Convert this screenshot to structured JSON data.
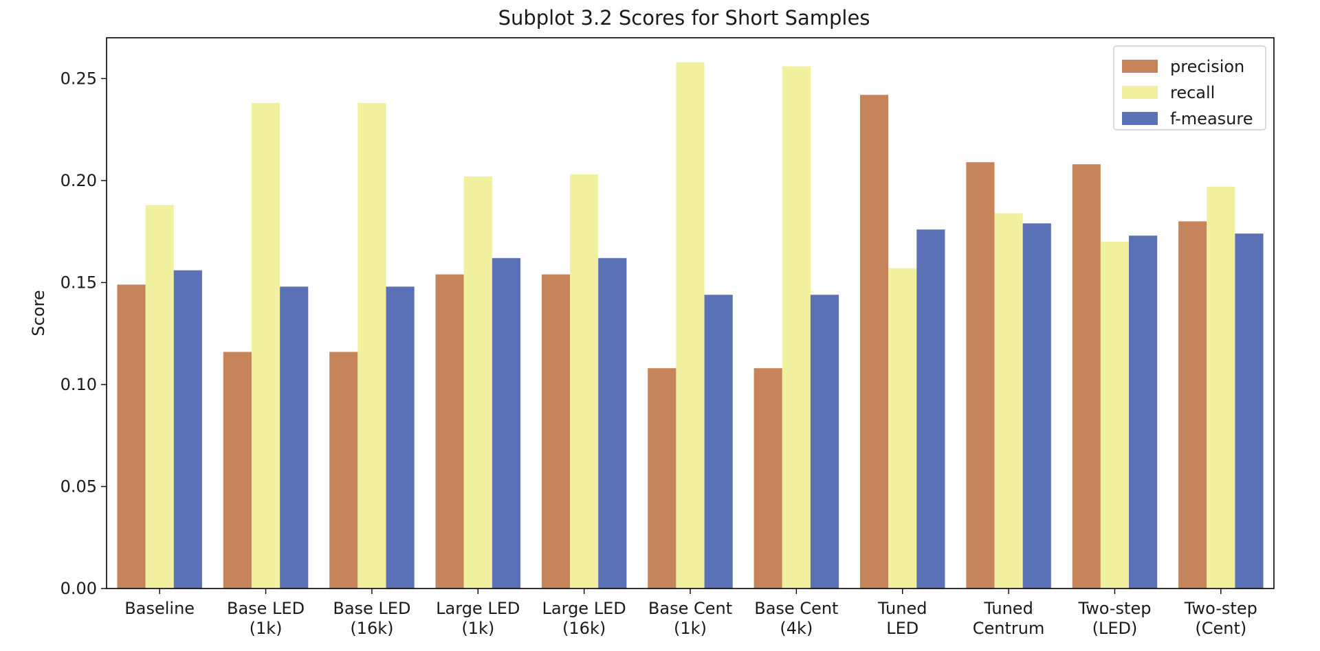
{
  "chart_data": {
    "type": "bar",
    "title": "Subplot 3.2 Scores for Short Samples",
    "xlabel": "",
    "ylabel": "Score",
    "ylim": [
      0,
      0.27
    ],
    "yticks": [
      "0.00",
      "0.05",
      "0.10",
      "0.15",
      "0.20",
      "0.25"
    ],
    "grid": false,
    "legend_position": "top-right",
    "categories": [
      [
        "Baseline"
      ],
      [
        "Base LED",
        "(1k)"
      ],
      [
        "Base LED",
        "(16k)"
      ],
      [
        "Large LED",
        "(1k)"
      ],
      [
        "Large LED",
        "(16k)"
      ],
      [
        "Base Cent",
        "(1k)"
      ],
      [
        "Base Cent",
        "(4k)"
      ],
      [
        "Tuned",
        "LED"
      ],
      [
        "Tuned",
        "Centrum"
      ],
      [
        "Two-step",
        "(LED)"
      ],
      [
        "Two-step",
        "(Cent)"
      ]
    ],
    "series": [
      {
        "name": "precision",
        "color": "#c5845a",
        "values": [
          0.149,
          0.116,
          0.116,
          0.154,
          0.154,
          0.108,
          0.108,
          0.242,
          0.209,
          0.208,
          0.18
        ]
      },
      {
        "name": "recall",
        "color": "#f0f09f",
        "values": [
          0.188,
          0.238,
          0.238,
          0.202,
          0.203,
          0.258,
          0.256,
          0.157,
          0.184,
          0.17,
          0.197
        ]
      },
      {
        "name": "f-measure",
        "color": "#5a72b5",
        "values": [
          0.156,
          0.148,
          0.148,
          0.162,
          0.162,
          0.144,
          0.144,
          0.176,
          0.179,
          0.173,
          0.174
        ]
      }
    ]
  }
}
